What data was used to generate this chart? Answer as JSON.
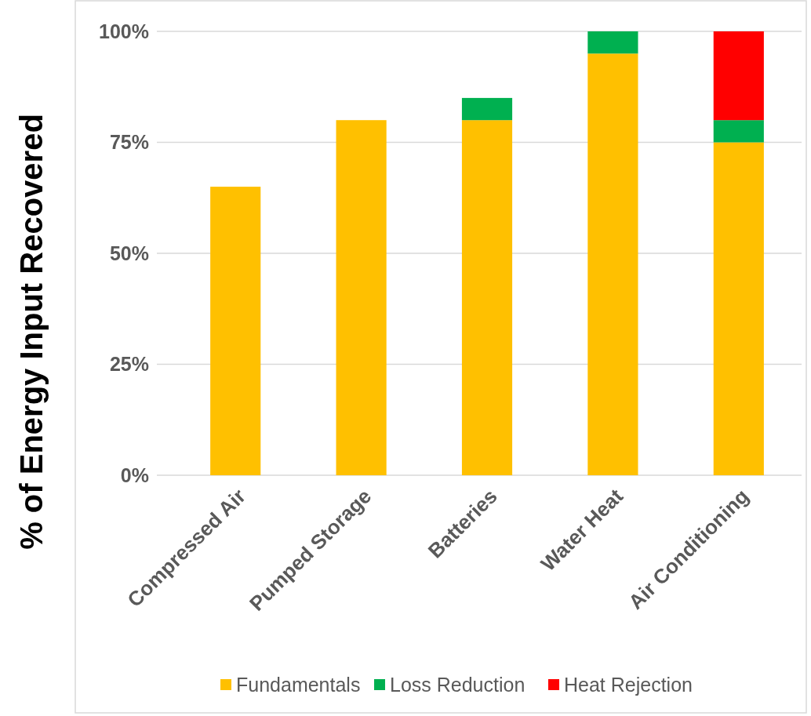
{
  "chart_data": {
    "type": "bar",
    "stacked": true,
    "ylabel": "% of Energy Input Recovered",
    "categories": [
      "Compressed Air",
      "Pumped Storage",
      "Batteries",
      "Water Heat",
      "Air Conditioning"
    ],
    "series": [
      {
        "name": "Fundamentals",
        "color": "#ffc000",
        "values": [
          65,
          80,
          80,
          95,
          75
        ]
      },
      {
        "name": "Loss Reduction",
        "color": "#00b050",
        "values": [
          null,
          null,
          5,
          5,
          5
        ]
      },
      {
        "name": "Heat Rejection",
        "color": "#ff0000",
        "values": [
          null,
          null,
          null,
          null,
          20
        ]
      }
    ],
    "ylim": [
      0,
      100
    ],
    "yticks": [
      {
        "value": 0,
        "label": "0%"
      },
      {
        "value": 25,
        "label": "25%"
      },
      {
        "value": 50,
        "label": "50%"
      },
      {
        "value": 75,
        "label": "75%"
      },
      {
        "value": 100,
        "label": "100%"
      }
    ],
    "grid": "y",
    "legend": "bottom"
  }
}
